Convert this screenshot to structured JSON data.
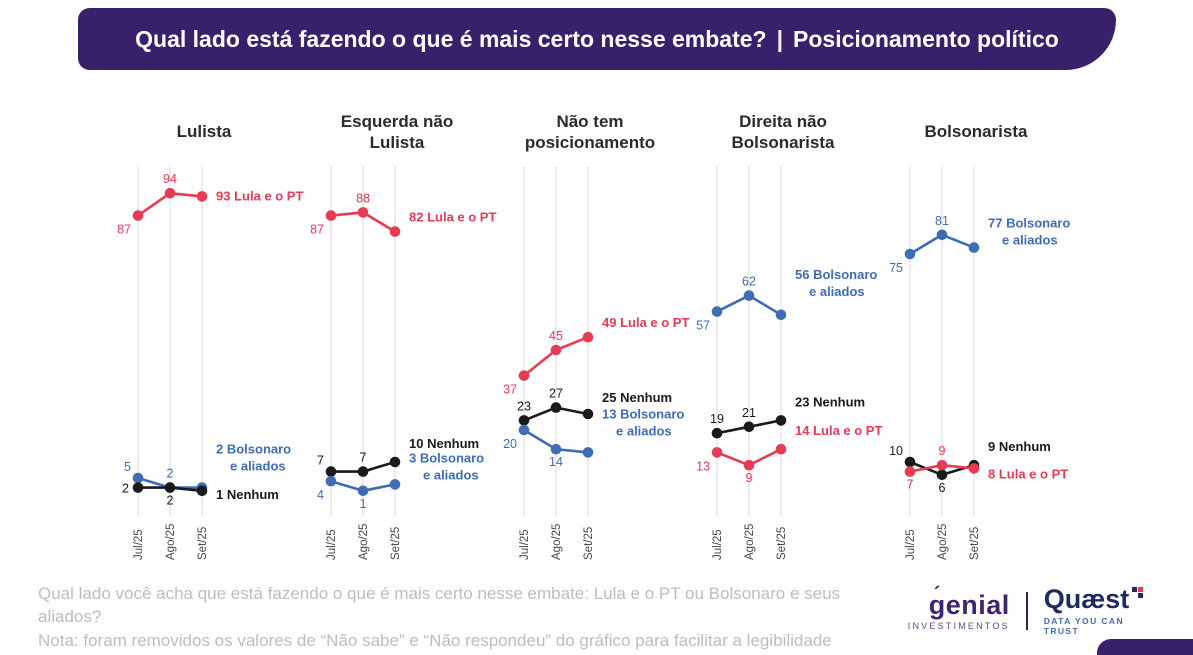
{
  "header": {
    "title": "Qual lado está fazendo o que é mais certo nesse embate?",
    "separator": "|",
    "subtitle": "Posicionamento político"
  },
  "colors": {
    "banner": "#38206B",
    "red": "#E73B55",
    "blue": "#3E6DB5",
    "black": "#1A1A1A",
    "grid": "#D9D9D9",
    "tick": "#474747",
    "footer_text": "#BDBDBD",
    "genial": "#3D2570",
    "quaest": "#1F2A5E",
    "quaest_sub": "#3E6DB5"
  },
  "chart_data": {
    "type": "line",
    "categories": [
      "Jul/25",
      "Ago/25",
      "Set/25"
    ],
    "ylim": [
      0,
      100
    ],
    "grid": "vertical-only",
    "legend": "inline-end-labels",
    "panels": [
      {
        "title": "Lulista",
        "series": [
          {
            "name": "Lula e o PT",
            "color": "red",
            "values": [
              87,
              94,
              93
            ],
            "label_pos": [
              "bl",
              "a"
            ],
            "name_lines": [
              "Lula e o PT"
            ],
            "name_dy": 0
          },
          {
            "name": "Bolsonaro e aliados",
            "color": "blue",
            "values": [
              5,
              2,
              2
            ],
            "label_pos": [
              "al",
              "a"
            ],
            "name_lines": [
              "Bolsonaro",
              "e aliados"
            ],
            "name_dy": -38
          },
          {
            "name": "Nenhum",
            "color": "black",
            "values": [
              2,
              2,
              1
            ],
            "label_pos": [
              "l",
              "b"
            ],
            "name_lines": [
              "Nenhum"
            ],
            "name_dy": 4
          }
        ]
      },
      {
        "title": "Esquerda não Lulista",
        "series": [
          {
            "name": "Lula e o PT",
            "color": "red",
            "values": [
              87,
              88,
              82
            ],
            "label_pos": [
              "bl",
              "a"
            ],
            "name_lines": [
              "Lula e o PT"
            ],
            "name_dy": -14
          },
          {
            "name": "Nenhum",
            "color": "black",
            "values": [
              7,
              7,
              10
            ],
            "label_pos": [
              "al",
              "a"
            ],
            "name_lines": [
              "Nenhum"
            ],
            "name_dy": -18
          },
          {
            "name": "Bolsonaro e aliados",
            "color": "blue",
            "values": [
              4,
              1,
              3
            ],
            "label_pos": [
              "bl",
              "b"
            ],
            "name_lines": [
              "Bolsonaro",
              "e aliados"
            ],
            "name_dy": -26
          }
        ]
      },
      {
        "title": "Não tem posicionamento",
        "series": [
          {
            "name": "Lula e o PT",
            "color": "red",
            "values": [
              37,
              45,
              49
            ],
            "label_pos": [
              "bl",
              "a"
            ],
            "name_lines": [
              "Lula e o PT"
            ],
            "name_dy": -14
          },
          {
            "name": "Nenhum",
            "color": "black",
            "values": [
              23,
              27,
              25
            ],
            "label_pos": [
              "a",
              "a"
            ],
            "name_lines": [
              "Nenhum"
            ],
            "name_dy": -16
          },
          {
            "name": "Bolsonaro e aliados",
            "color": "blue",
            "values": [
              20,
              14,
              13
            ],
            "label_pos": [
              "bl",
              "b"
            ],
            "name_lines": [
              "Bolsonaro",
              "e aliados"
            ],
            "name_dy": -38
          }
        ]
      },
      {
        "title": "Direita não Bolsonarista",
        "series": [
          {
            "name": "Bolsonaro e aliados",
            "color": "blue",
            "values": [
              57,
              62,
              56
            ],
            "label_pos": [
              "bl",
              "a"
            ],
            "name_lines": [
              "Bolsonaro",
              "e aliados"
            ],
            "name_dy": -40
          },
          {
            "name": "Nenhum",
            "color": "black",
            "values": [
              19,
              21,
              23
            ],
            "label_pos": [
              "a",
              "a"
            ],
            "name_lines": [
              "Nenhum"
            ],
            "name_dy": -18
          },
          {
            "name": "Lula e o PT",
            "color": "red",
            "values": [
              13,
              9,
              14
            ],
            "label_pos": [
              "bl",
              "b"
            ],
            "name_lines": [
              "Lula e o PT"
            ],
            "name_dy": -18
          }
        ]
      },
      {
        "title": "Bolsonarista",
        "series": [
          {
            "name": "Bolsonaro e aliados",
            "color": "blue",
            "values": [
              75,
              81,
              77
            ],
            "label_pos": [
              "bl",
              "a"
            ],
            "name_lines": [
              "Bolsonaro",
              "e aliados"
            ],
            "name_dy": -24
          },
          {
            "name": "Nenhum",
            "color": "black",
            "values": [
              10,
              6,
              9
            ],
            "label_pos": [
              "al",
              "b"
            ],
            "name_lines": [
              "Nenhum"
            ],
            "name_dy": -18
          },
          {
            "name": "Lula e o PT",
            "color": "red",
            "values": [
              7,
              9,
              8
            ],
            "label_pos": [
              "b",
              "a"
            ],
            "name_lines": [
              "Lula e o PT"
            ],
            "name_dy": 6
          }
        ]
      }
    ]
  },
  "footer": {
    "question": "Qual lado você acha que está fazendo o que é mais certo nesse embate: Lula e o PT ou Bolsonaro e seus aliados?",
    "note": "Nota: foram removidos os valores de “Não sabe” e “Não respondeu” do gráfico para facilitar a legibilidade"
  },
  "logos": {
    "genial_name": "genial",
    "genial_accent": "´",
    "genial_sub": "INVESTIMENTOS",
    "divider": "",
    "quaest_name": "Quæst",
    "quaest_sub": "DATA YOU CAN TRUST",
    "quaest_icon": "grid-plus-icon",
    "genial_icon": "accent-mark-icon"
  }
}
